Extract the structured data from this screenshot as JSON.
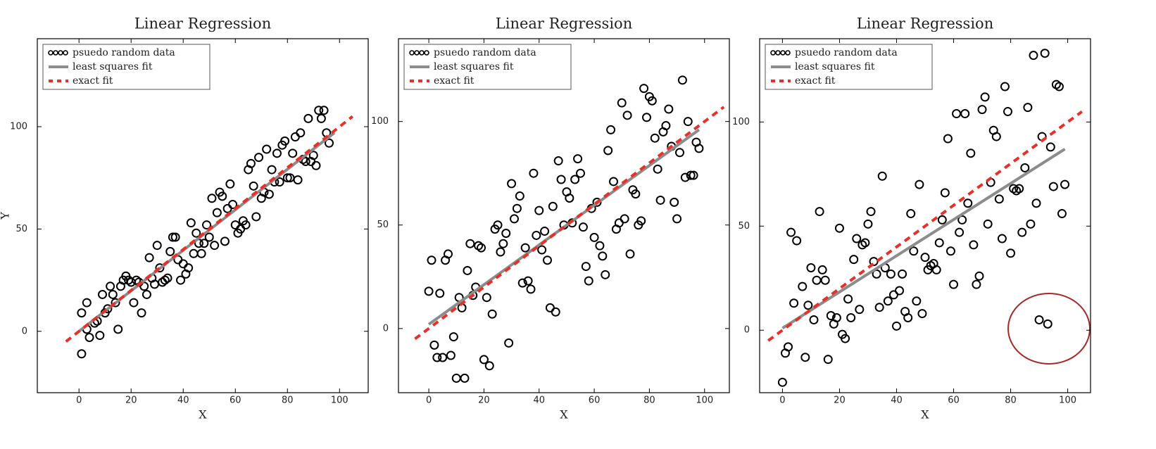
{
  "chart_data": [
    {
      "type": "scatter",
      "title": "Linear Regression",
      "xlabel": "X",
      "ylabel": "Y",
      "xlim": [
        -16,
        111
      ],
      "ylim": [
        -30,
        143
      ],
      "xticks": [
        0,
        20,
        40,
        60,
        80,
        100
      ],
      "yticks": [
        0,
        50,
        100
      ],
      "legend": "upper left",
      "series": [
        {
          "name": "psuedo random data",
          "color": "#000000",
          "marker": "circle",
          "x": [
            1,
            1,
            3,
            3,
            4,
            6,
            7,
            8,
            9,
            10,
            11,
            12,
            13,
            14,
            15,
            16,
            17,
            18,
            19,
            20,
            21,
            22,
            23,
            24,
            25,
            26,
            27,
            28,
            29,
            30,
            31,
            32,
            33,
            34,
            35,
            36,
            37,
            38,
            39,
            40,
            41,
            42,
            43,
            44,
            45,
            46,
            47,
            48,
            49,
            50,
            51,
            52,
            53,
            54,
            55,
            56,
            57,
            58,
            59,
            60,
            61,
            62,
            63,
            64,
            65,
            66,
            67,
            68,
            69,
            70,
            71,
            72,
            73,
            74,
            75,
            76,
            77,
            78,
            79,
            80,
            81,
            82,
            83,
            84,
            85,
            86,
            87,
            88,
            89,
            90,
            91,
            92,
            93,
            94,
            95,
            96
          ],
          "values": [
            -11,
            9,
            1,
            14,
            -3,
            4,
            5,
            -2,
            18,
            9,
            11,
            22,
            18,
            14,
            1,
            22,
            25,
            27,
            25,
            24,
            14,
            25,
            24,
            9,
            22,
            18,
            36,
            26,
            23,
            42,
            31,
            24,
            25,
            26,
            39,
            46,
            46,
            35,
            25,
            33,
            28,
            31,
            53,
            38,
            48,
            43,
            38,
            43,
            52,
            46,
            65,
            42,
            58,
            68,
            66,
            44,
            60,
            72,
            62,
            52,
            48,
            50,
            54,
            52,
            79,
            82,
            71,
            56,
            85,
            65,
            68,
            89,
            67,
            79,
            73,
            87,
            73,
            91,
            93,
            75,
            75,
            87,
            95,
            74,
            97,
            84,
            83,
            104,
            83,
            86,
            81,
            108,
            104,
            108,
            97,
            92
          ]
        },
        {
          "name": "least squares fit",
          "color": "#8c8c8c",
          "style": "solid",
          "x": [
            0,
            98
          ],
          "values": [
            0,
            97
          ]
        },
        {
          "name": "exact fit",
          "color": "#e8302a",
          "style": "dashed",
          "x": [
            -5,
            105
          ],
          "values": [
            -5,
            105
          ]
        }
      ]
    },
    {
      "type": "scatter",
      "title": "Linear Regression",
      "xlabel": "X",
      "xlim": [
        -11,
        109
      ],
      "ylim": [
        -31,
        140
      ],
      "xticks": [
        0,
        20,
        40,
        60,
        80,
        100
      ],
      "yticks": [
        0,
        50,
        100
      ],
      "legend": "upper left",
      "series": [
        {
          "name": "psuedo random data",
          "color": "#000000",
          "marker": "circle",
          "x": [
            0,
            1,
            2,
            3,
            4,
            5,
            6,
            7,
            8,
            9,
            10,
            11,
            12,
            13,
            14,
            15,
            16,
            17,
            18,
            19,
            20,
            21,
            22,
            23,
            24,
            25,
            26,
            27,
            28,
            29,
            30,
            31,
            32,
            33,
            34,
            35,
            36,
            37,
            38,
            39,
            40,
            41,
            42,
            43,
            44,
            45,
            46,
            47,
            48,
            49,
            50,
            51,
            52,
            53,
            54,
            55,
            56,
            57,
            58,
            59,
            60,
            61,
            62,
            63,
            64,
            65,
            66,
            67,
            68,
            69,
            70,
            71,
            72,
            73,
            74,
            75,
            76,
            77,
            78,
            79,
            80,
            81,
            82,
            83,
            84,
            85,
            86,
            87,
            88,
            89,
            90,
            91,
            92,
            93,
            94,
            95,
            96,
            97,
            98
          ],
          "values": [
            18,
            33,
            -8,
            -14,
            17,
            -14,
            33,
            36,
            -13,
            -4,
            -24,
            15,
            10,
            -24,
            28,
            41,
            16,
            20,
            40,
            39,
            -15,
            15,
            -18,
            7,
            48,
            50,
            37,
            41,
            46,
            -7,
            70,
            53,
            58,
            64,
            22,
            39,
            23,
            19,
            75,
            45,
            57,
            38,
            47,
            33,
            10,
            59,
            8,
            81,
            72,
            50,
            66,
            63,
            51,
            72,
            82,
            75,
            49,
            30,
            23,
            58,
            44,
            61,
            40,
            35,
            26,
            86,
            96,
            71,
            48,
            51,
            109,
            53,
            103,
            36,
            67,
            65,
            50,
            52,
            116,
            102,
            112,
            110,
            92,
            77,
            62,
            95,
            98,
            106,
            88,
            61,
            53,
            85,
            120,
            73,
            100,
            74,
            74,
            90,
            87
          ]
        },
        {
          "name": "least squares fit",
          "color": "#8c8c8c",
          "style": "solid",
          "x": [
            0,
            98
          ],
          "values": [
            2,
            96
          ]
        },
        {
          "name": "exact fit",
          "color": "#e8302a",
          "style": "dashed",
          "x": [
            -5,
            107
          ],
          "values": [
            -5,
            107
          ]
        }
      ]
    },
    {
      "type": "scatter",
      "title": "Linear Regression",
      "xlabel": "X",
      "xlim": [
        -8,
        108
      ],
      "ylim": [
        -30,
        140
      ],
      "xticks": [
        0,
        20,
        40,
        60,
        80,
        100
      ],
      "yticks": [
        0,
        50,
        100
      ],
      "legend": "upper left",
      "series": [
        {
          "name": "psuedo random data",
          "color": "#000000",
          "marker": "circle",
          "x": [
            0,
            1,
            2,
            3,
            4,
            5,
            7,
            8,
            9,
            10,
            11,
            12,
            13,
            14,
            15,
            16,
            17,
            18,
            19,
            20,
            21,
            22,
            23,
            24,
            25,
            26,
            27,
            28,
            29,
            30,
            31,
            32,
            33,
            34,
            35,
            36,
            37,
            38,
            39,
            40,
            41,
            42,
            43,
            44,
            45,
            46,
            47,
            48,
            49,
            50,
            51,
            52,
            53,
            54,
            55,
            56,
            57,
            58,
            59,
            60,
            61,
            62,
            63,
            64,
            65,
            66,
            67,
            68,
            69,
            70,
            71,
            72,
            73,
            74,
            75,
            76,
            77,
            78,
            79,
            80,
            81,
            82,
            83,
            84,
            85,
            86,
            87,
            88,
            89,
            90,
            91,
            92,
            93,
            94,
            95,
            96,
            97,
            98,
            99
          ],
          "values": [
            -25,
            -11,
            -8,
            47,
            13,
            43,
            21,
            -13,
            12,
            30,
            5,
            24,
            57,
            29,
            24,
            -14,
            7,
            3,
            6,
            49,
            -2,
            -4,
            15,
            6,
            34,
            44,
            10,
            41,
            42,
            51,
            57,
            33,
            27,
            11,
            74,
            30,
            14,
            27,
            17,
            2,
            19,
            27,
            9,
            6,
            56,
            38,
            14,
            70,
            8,
            35,
            29,
            31,
            32,
            29,
            42,
            53,
            66,
            92,
            38,
            22,
            104,
            47,
            53,
            104,
            61,
            85,
            41,
            22,
            26,
            106,
            112,
            51,
            71,
            96,
            93,
            63,
            44,
            117,
            105,
            37,
            68,
            67,
            68,
            47,
            78,
            107,
            51,
            132,
            61,
            5,
            93,
            133,
            3,
            88,
            69,
            118,
            117,
            56,
            70
          ]
        },
        {
          "name": "least squares fit",
          "color": "#8c8c8c",
          "style": "solid",
          "x": [
            0,
            99
          ],
          "values": [
            1,
            87
          ]
        },
        {
          "name": "exact fit",
          "color": "#e8302a",
          "style": "dashed",
          "x": [
            -5,
            105
          ],
          "values": [
            -5,
            105
          ]
        }
      ]
    }
  ]
}
